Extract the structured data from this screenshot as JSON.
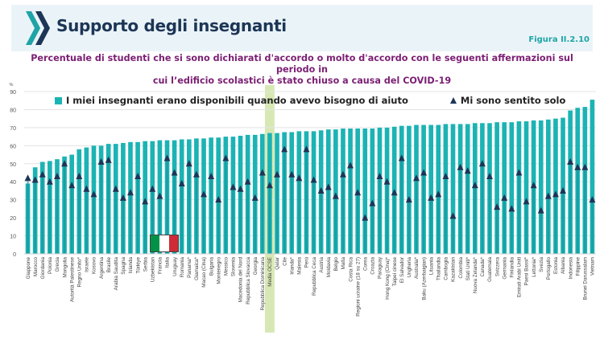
{
  "header": {
    "title": "Supporto degli insegnanti",
    "figure_label": "Figura II.2.10",
    "subtitle_line1": "Percentuale di studenti che si sono dichiarati d'accordo o molto d'accordo con le seguenti affermazioni sul periodo in",
    "subtitle_line2": "cui l’edificio scolastici è stato chiuso a causa del COVID-19"
  },
  "colors": {
    "bar": "#1cb3b4",
    "marker": "#1d3556",
    "oecd_highlight": "#d7e8b4",
    "title": "#1d3556",
    "subtitle": "#7b1f73",
    "figure_label": "#1fa3a6",
    "flag": [
      "#009246",
      "#ffffff",
      "#ce2b37"
    ]
  },
  "flag_marker": {
    "country": "Italia",
    "icon": "italian-flag-icon"
  },
  "chart_data": {
    "type": "bar",
    "title": "Percentuale di studenti che si sono dichiarati d'accordo o molto d'accordo con le seguenti affermazioni sul periodo in cui l’edificio scolastici è stato chiuso a causa del COVID-19",
    "ylabel": "%",
    "xlabel": "",
    "ylim": [
      0,
      90
    ],
    "yticks": [
      0,
      10,
      20,
      30,
      40,
      50,
      60,
      70,
      80,
      90
    ],
    "grid": true,
    "legend_position": "top",
    "highlight_category": "Media OCSE",
    "categories": [
      "Giappone",
      "Marocco",
      "Giordania",
      "Polonia",
      "Grecia",
      "Mongolia",
      "Autorità Palestinese",
      "Regno Unito*",
      "Israele",
      "Kosovo",
      "Argentina",
      "Brasile",
      "Arabia Saudita",
      "Spagna",
      "Islanda",
      "Türkiye",
      "Serbia",
      "Uzbekistan",
      "Francia",
      "Italia",
      "Uruguay",
      "Romania",
      "Panama*",
      "Giamaica*",
      "Macao (Cina)",
      "Bulgaria",
      "Montenegro",
      "Messico",
      "Slovenia",
      "Macedonia del Nord",
      "Repubblica Slovacca",
      "Georgia",
      "Repubblica Dominicana",
      "Media OCSE",
      "Qatar",
      "Cile",
      "Irlanda*",
      "Malesia",
      "Perù",
      "Repubblica Ceca",
      "Austria",
      "Moldavia",
      "Belgio",
      "Malta",
      "Costa Rica",
      "Regioni ucraine (18 su 27)",
      "Corea",
      "Croazia",
      "Paraguay",
      "Hong Kong (Cina)*",
      "Taipei cinese",
      "El Salvador",
      "Ungheria",
      "Australia*",
      "Baku (Azerbaigian)",
      "Lituania",
      "Thailandia",
      "Cambogia",
      "Kazakistan",
      "Colombia",
      "Stati Uniti*",
      "Nuova Zelanda*",
      "Canada*",
      "Guatemala",
      "Svizzera",
      "Germania",
      "Finlandia",
      "Emirati Arabi Uniti",
      "Paesi Bassi*",
      "Lettonia*",
      "Svezia",
      "Portogallo",
      "Estonia",
      "Albania",
      "Indonesia",
      "Filippine",
      "Brunei Darussalam",
      "Vietnam"
    ],
    "series": [
      {
        "name": "I miei insegnanti erano disponibili quando avevo bisogno di aiuto",
        "type": "bar",
        "values": [
          39,
          48,
          51,
          51.5,
          52.5,
          54,
          55,
          58,
          59,
          60,
          60,
          61,
          61,
          61.5,
          62,
          62,
          62.5,
          62.5,
          63,
          63,
          63,
          63.5,
          63.5,
          64,
          64,
          64.5,
          64.5,
          65,
          65,
          65.5,
          66,
          66,
          66.5,
          67,
          67,
          67.5,
          67.5,
          68,
          68,
          68,
          68.5,
          69,
          69,
          69.5,
          69.5,
          69.5,
          69.5,
          69.5,
          70,
          70,
          70.5,
          71,
          71,
          71.5,
          71.5,
          71.5,
          71.5,
          72,
          72,
          72,
          72,
          72.5,
          72.5,
          72.5,
          73,
          73,
          73,
          73.5,
          73.5,
          74,
          74,
          74.5,
          75,
          75.5,
          79.5,
          81,
          81.5,
          85.5
        ]
      },
      {
        "name": "Mi sono sentito solo",
        "type": "scatter",
        "marker": "triangle",
        "values": [
          42,
          41,
          44,
          40,
          43,
          50,
          38,
          43,
          36,
          33,
          51,
          52,
          36,
          31,
          34,
          43,
          29,
          36,
          32,
          53,
          45,
          39,
          50,
          44,
          33,
          43,
          30,
          53,
          37,
          36,
          40,
          31,
          45,
          38,
          44,
          58,
          44,
          42,
          58,
          41,
          35,
          37,
          32,
          44,
          49,
          34,
          20,
          28,
          43,
          40,
          34,
          53,
          30,
          42,
          45,
          31,
          33,
          43,
          21,
          48,
          46,
          38,
          50,
          43,
          26,
          31,
          25,
          45,
          29,
          38,
          24,
          32,
          33,
          35,
          51,
          48,
          48,
          30
        ]
      }
    ]
  }
}
